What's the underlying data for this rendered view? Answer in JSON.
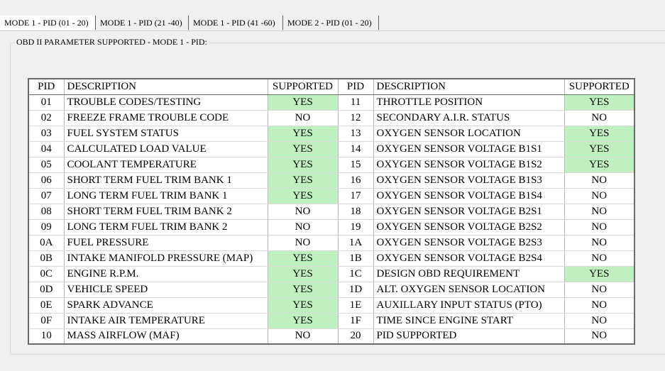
{
  "tabs": [
    {
      "label": "MODE 1 - PID (01 - 20)"
    },
    {
      "label": "MODE 1 - PID (21 -40)"
    },
    {
      "label": "MODE 1 - PID (41 -60)"
    },
    {
      "label": "MODE 2 - PID (01 - 20)"
    }
  ],
  "group": {
    "title": "OBD II PARAMETER SUPPORTED - MODE 1 - PID:"
  },
  "table": {
    "headers": [
      "PID",
      "DESCRIPTION",
      "SUPPORTED",
      "PID",
      "DESCRIPTION",
      "SUPPORTED"
    ],
    "rows": [
      {
        "pid1": "01",
        "desc1": "TROUBLE CODES/TESTING",
        "sup1": "YES",
        "pid2": "11",
        "desc2": "THROTTLE POSITION",
        "sup2": "YES"
      },
      {
        "pid1": "02",
        "desc1": "FREEZE FRAME TROUBLE CODE",
        "sup1": "NO",
        "pid2": "12",
        "desc2": "SECONDARY A.I.R. STATUS",
        "sup2": "NO"
      },
      {
        "pid1": "03",
        "desc1": "FUEL SYSTEM STATUS",
        "sup1": "YES",
        "pid2": "13",
        "desc2": "OXYGEN SENSOR LOCATION",
        "sup2": "YES"
      },
      {
        "pid1": "04",
        "desc1": "CALCULATED LOAD VALUE",
        "sup1": "YES",
        "pid2": "14",
        "desc2": "OXYGEN SENSOR VOLTAGE B1S1",
        "sup2": "YES"
      },
      {
        "pid1": "05",
        "desc1": "COOLANT TEMPERATURE",
        "sup1": "YES",
        "pid2": "15",
        "desc2": "OXYGEN SENSOR VOLTAGE B1S2",
        "sup2": "YES"
      },
      {
        "pid1": "06",
        "desc1": "SHORT TERM FUEL TRIM BANK 1",
        "sup1": "YES",
        "pid2": "16",
        "desc2": "OXYGEN SENSOR VOLTAGE B1S3",
        "sup2": "NO"
      },
      {
        "pid1": "07",
        "desc1": "LONG TERM FUEL TRIM BANK 1",
        "sup1": "YES",
        "pid2": "17",
        "desc2": "OXYGEN SENSOR VOLTAGE B1S4",
        "sup2": "NO"
      },
      {
        "pid1": "08",
        "desc1": "SHORT TERM FUEL TRIM BANK 2",
        "sup1": "NO",
        "pid2": "18",
        "desc2": "OXYGEN SENSOR VOLTAGE B2S1",
        "sup2": "NO"
      },
      {
        "pid1": "09",
        "desc1": "LONG TERM FUEL TRIM BANK 2",
        "sup1": "NO",
        "pid2": "19",
        "desc2": "OXYGEN SENSOR VOLTAGE B2S2",
        "sup2": "NO"
      },
      {
        "pid1": "0A",
        "desc1": "FUEL PRESSURE",
        "sup1": "NO",
        "pid2": "1A",
        "desc2": "OXYGEN SENSOR VOLTAGE B2S3",
        "sup2": "NO"
      },
      {
        "pid1": "0B",
        "desc1": "INTAKE MANIFOLD PRESSURE (MAP)",
        "sup1": "YES",
        "pid2": "1B",
        "desc2": "OXYGEN SENSOR VOLTAGE B2S4",
        "sup2": "NO"
      },
      {
        "pid1": "0C",
        "desc1": "ENGINE R.P.M.",
        "sup1": "YES",
        "pid2": "1C",
        "desc2": "DESIGN OBD REQUIREMENT",
        "sup2": "YES"
      },
      {
        "pid1": "0D",
        "desc1": "VEHICLE SPEED",
        "sup1": "YES",
        "pid2": "1D",
        "desc2": "ALT. OXYGEN SENSOR LOCATION",
        "sup2": "NO"
      },
      {
        "pid1": "0E",
        "desc1": "SPARK ADVANCE",
        "sup1": "YES",
        "pid2": "1E",
        "desc2": "AUXILLARY INPUT STATUS (PTO)",
        "sup2": "NO"
      },
      {
        "pid1": "0F",
        "desc1": "INTAKE AIR TEMPERATURE",
        "sup1": "YES",
        "pid2": "1F",
        "desc2": "TIME SINCE ENGINE START",
        "sup2": "NO"
      },
      {
        "pid1": "10",
        "desc1": "MASS AIRFLOW (MAF)",
        "sup1": "NO",
        "pid2": "20",
        "desc2": "PID SUPPORTED",
        "sup2": "NO"
      }
    ]
  },
  "colors": {
    "supported_yes": "#c0f0c0",
    "background": "#f0f0f0",
    "table_bg": "#ffffff"
  }
}
